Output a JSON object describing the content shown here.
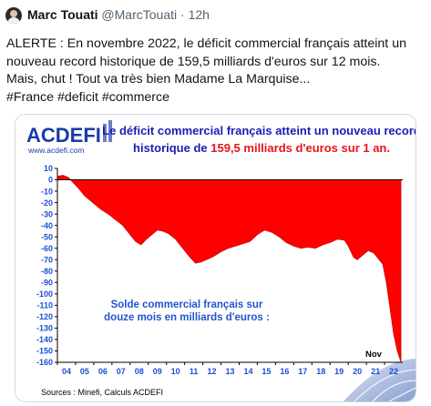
{
  "tweet": {
    "author_name": "Marc Touati",
    "handle": "@MarcTouati",
    "separator": "·",
    "time": "12h",
    "lines": [
      "ALERTE : En novembre 2022, le déficit commercial français atteint un",
      "nouveau record historique de 159,5 milliards d'euros sur 12 mois.",
      "Mais, chut ! Tout va très bien Madame La Marquise...",
      "#France #deficit #commerce"
    ]
  },
  "image": {
    "logo_text": "ACDEFI",
    "logo_url": "www.acdefi.com",
    "headline_line1": "Le déficit commercial français atteint un nouveau record",
    "headline_line2_prefix": "historique de ",
    "headline_line2_highlight": "159,5 milliards d'euros sur 1 an.",
    "annotation_line1": "Solde commercial français sur",
    "annotation_line2": "douze mois en milliards d'euros :",
    "marker_label": "Nov",
    "source": "Sources : Minefi, Calculs ACDEFI",
    "colors": {
      "headline_blue": "#1c1cb4",
      "highlight_red": "#e8141c",
      "area_red": "#ff0000",
      "axis_blue": "#1a4fd6",
      "annotation_blue": "#2255cc"
    }
  },
  "chart_data": {
    "type": "area",
    "title": "",
    "xlabel": "",
    "ylabel": "",
    "xlim": [
      2004,
      2023
    ],
    "ylim": [
      -160,
      10
    ],
    "x_tick_labels": [
      "04",
      "05",
      "06",
      "07",
      "08",
      "09",
      "10",
      "11",
      "12",
      "13",
      "14",
      "15",
      "16",
      "17",
      "18",
      "19",
      "20",
      "21",
      "22"
    ],
    "y_ticks": [
      10,
      0,
      -10,
      -20,
      -30,
      -40,
      -50,
      -60,
      -70,
      -80,
      -90,
      -100,
      -110,
      -120,
      -130,
      -140,
      -150,
      -160
    ],
    "grid": false,
    "series": [
      {
        "x": [
          2004.0,
          2004.3,
          2004.6,
          2004.9,
          2005.2,
          2005.5,
          2005.8,
          2006.1,
          2006.4,
          2006.8,
          2007.2,
          2007.6,
          2008.0,
          2008.3,
          2008.6,
          2008.9,
          2009.2,
          2009.5,
          2009.8,
          2010.1,
          2010.5,
          2010.9,
          2011.3,
          2011.6,
          2011.9,
          2012.2,
          2012.6,
          2013.0,
          2013.4,
          2013.8,
          2014.2,
          2014.6,
          2015.0,
          2015.4,
          2015.8,
          2016.2,
          2016.6,
          2017.0,
          2017.4,
          2017.8,
          2018.2,
          2018.6,
          2019.0,
          2019.4,
          2019.8,
          2020.0,
          2020.3,
          2020.5,
          2020.8,
          2021.1,
          2021.4,
          2021.7,
          2021.9,
          2022.1,
          2022.3,
          2022.5,
          2022.7,
          2022.9
        ],
        "values": [
          3,
          4,
          2,
          -3,
          -8,
          -14,
          -18,
          -22,
          -26,
          -30,
          -35,
          -40,
          -48,
          -54,
          -57,
          -52,
          -48,
          -44,
          -45,
          -47,
          -52,
          -60,
          -68,
          -73,
          -72,
          -70,
          -67,
          -63,
          -60,
          -58,
          -56,
          -54,
          -48,
          -44,
          -46,
          -50,
          -55,
          -58,
          -60,
          -59,
          -60,
          -57,
          -55,
          -52,
          -53,
          -58,
          -68,
          -70,
          -66,
          -62,
          -64,
          -70,
          -74,
          -90,
          -112,
          -135,
          -150,
          -159.5
        ]
      }
    ]
  }
}
